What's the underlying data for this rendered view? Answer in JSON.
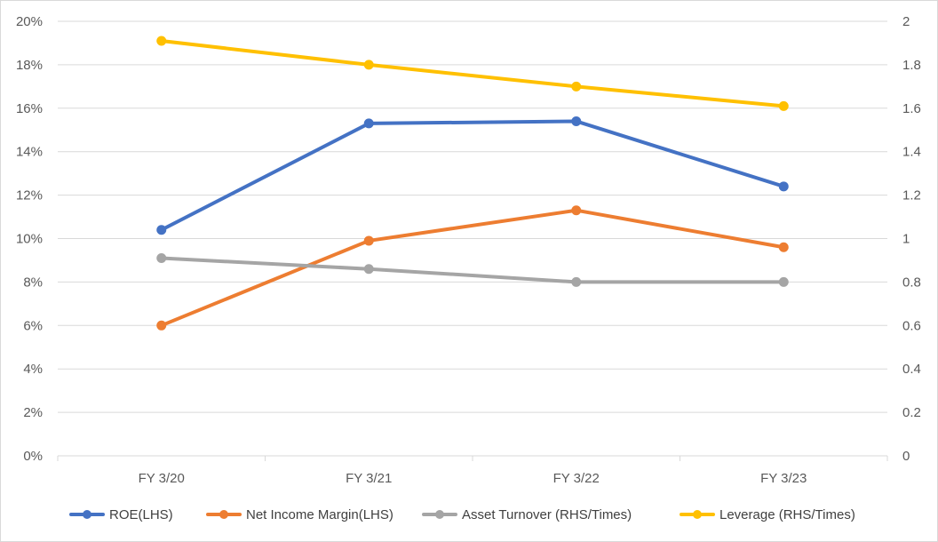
{
  "chart_data": {
    "type": "line",
    "title": "",
    "categories": [
      "FY 3/20",
      "FY 3/21",
      "FY 3/22",
      "FY 3/23"
    ],
    "y_left": {
      "ylim": [
        0,
        20
      ],
      "ticks": [
        "0%",
        "2%",
        "4%",
        "6%",
        "8%",
        "10%",
        "12%",
        "14%",
        "16%",
        "18%",
        "20%"
      ]
    },
    "y_right": {
      "ylim": [
        0,
        2
      ],
      "ticks": [
        "0",
        "0.2",
        "0.4",
        "0.6",
        "0.8",
        "1",
        "1.2",
        "1.4",
        "1.6",
        "1.8",
        "2"
      ]
    },
    "grid": true,
    "legend_position": "bottom",
    "series": [
      {
        "name": "ROE(LHS)",
        "axis": "left",
        "color": "#4472C4",
        "values": [
          10.4,
          15.3,
          15.4,
          12.4
        ]
      },
      {
        "name": "Net Income Margin(LHS)",
        "axis": "left",
        "color": "#ED7D31",
        "values": [
          6.0,
          9.9,
          11.3,
          9.6
        ]
      },
      {
        "name": "Asset Turnover (RHS/Times)",
        "axis": "right",
        "color": "#A5A5A5",
        "values": [
          0.91,
          0.86,
          0.8,
          0.8
        ]
      },
      {
        "name": "Leverage (RHS/Times)",
        "axis": "right",
        "color": "#FFC000",
        "values": [
          1.91,
          1.8,
          1.7,
          1.61
        ]
      }
    ]
  }
}
